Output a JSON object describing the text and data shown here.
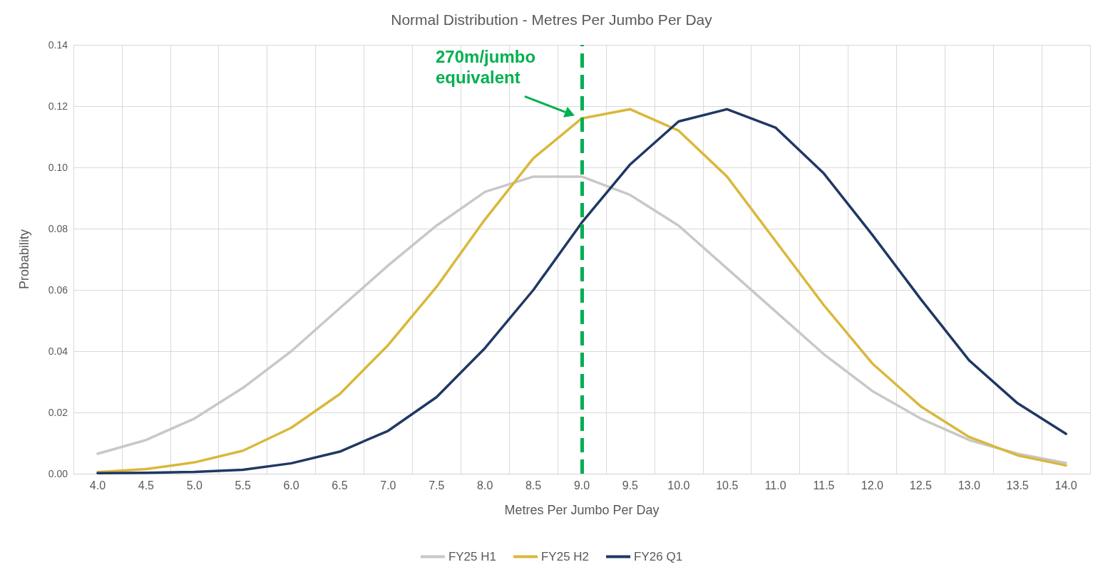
{
  "chart_data": {
    "type": "line",
    "title": "Normal Distribution - Metres Per Jumbo Per Day",
    "xlabel": "Metres Per Jumbo Per Day",
    "ylabel": "Probability",
    "categories": [
      "4.0",
      "4.5",
      "5.0",
      "5.5",
      "6.0",
      "6.5",
      "7.0",
      "7.5",
      "8.0",
      "8.5",
      "9.0",
      "9.5",
      "10.0",
      "10.5",
      "11.0",
      "11.5",
      "12.0",
      "12.5",
      "13.0",
      "13.5",
      "14.0"
    ],
    "series": [
      {
        "name": "FY25 H1",
        "color": "#c8c8c8",
        "values": [
          0.0065,
          0.011,
          0.018,
          0.028,
          0.04,
          0.054,
          0.068,
          0.081,
          0.092,
          0.097,
          0.097,
          0.091,
          0.081,
          0.067,
          0.053,
          0.039,
          0.027,
          0.018,
          0.011,
          0.0065,
          0.0035
        ]
      },
      {
        "name": "FY25 H2",
        "color": "#d9b83a",
        "values": [
          0.0005,
          0.0015,
          0.0037,
          0.0075,
          0.015,
          0.026,
          0.042,
          0.061,
          0.083,
          0.103,
          0.116,
          0.119,
          0.112,
          0.097,
          0.076,
          0.055,
          0.036,
          0.022,
          0.012,
          0.006,
          0.0027
        ]
      },
      {
        "name": "FY26 Q1",
        "color": "#1f3864",
        "values": [
          0.0002,
          0.0003,
          0.0006,
          0.0013,
          0.0034,
          0.0072,
          0.014,
          0.025,
          0.041,
          0.06,
          0.082,
          0.101,
          0.115,
          0.119,
          0.113,
          0.098,
          0.078,
          0.057,
          0.037,
          0.023,
          0.013
        ]
      }
    ],
    "ylim": [
      0,
      0.14
    ],
    "yticks": [
      {
        "value": 0,
        "label": "0.00"
      },
      {
        "value": 0.02,
        "label": "0.02"
      },
      {
        "value": 0.04,
        "label": "0.04"
      },
      {
        "value": 0.06,
        "label": "0.06"
      },
      {
        "value": 0.08,
        "label": "0.08"
      },
      {
        "value": 0.1,
        "label": "0.10"
      },
      {
        "value": 0.12,
        "label": "0.12"
      },
      {
        "value": 0.14,
        "label": "0.14"
      }
    ],
    "ref_lines": [
      {
        "axis": "x",
        "value": "9.0",
        "color": "#00b050",
        "line_style": "dashed"
      }
    ],
    "annotations": [
      "270m/jumbo equivalent"
    ],
    "grid": true,
    "legend": "bottom",
    "marker": "none",
    "line_style": "solid"
  }
}
